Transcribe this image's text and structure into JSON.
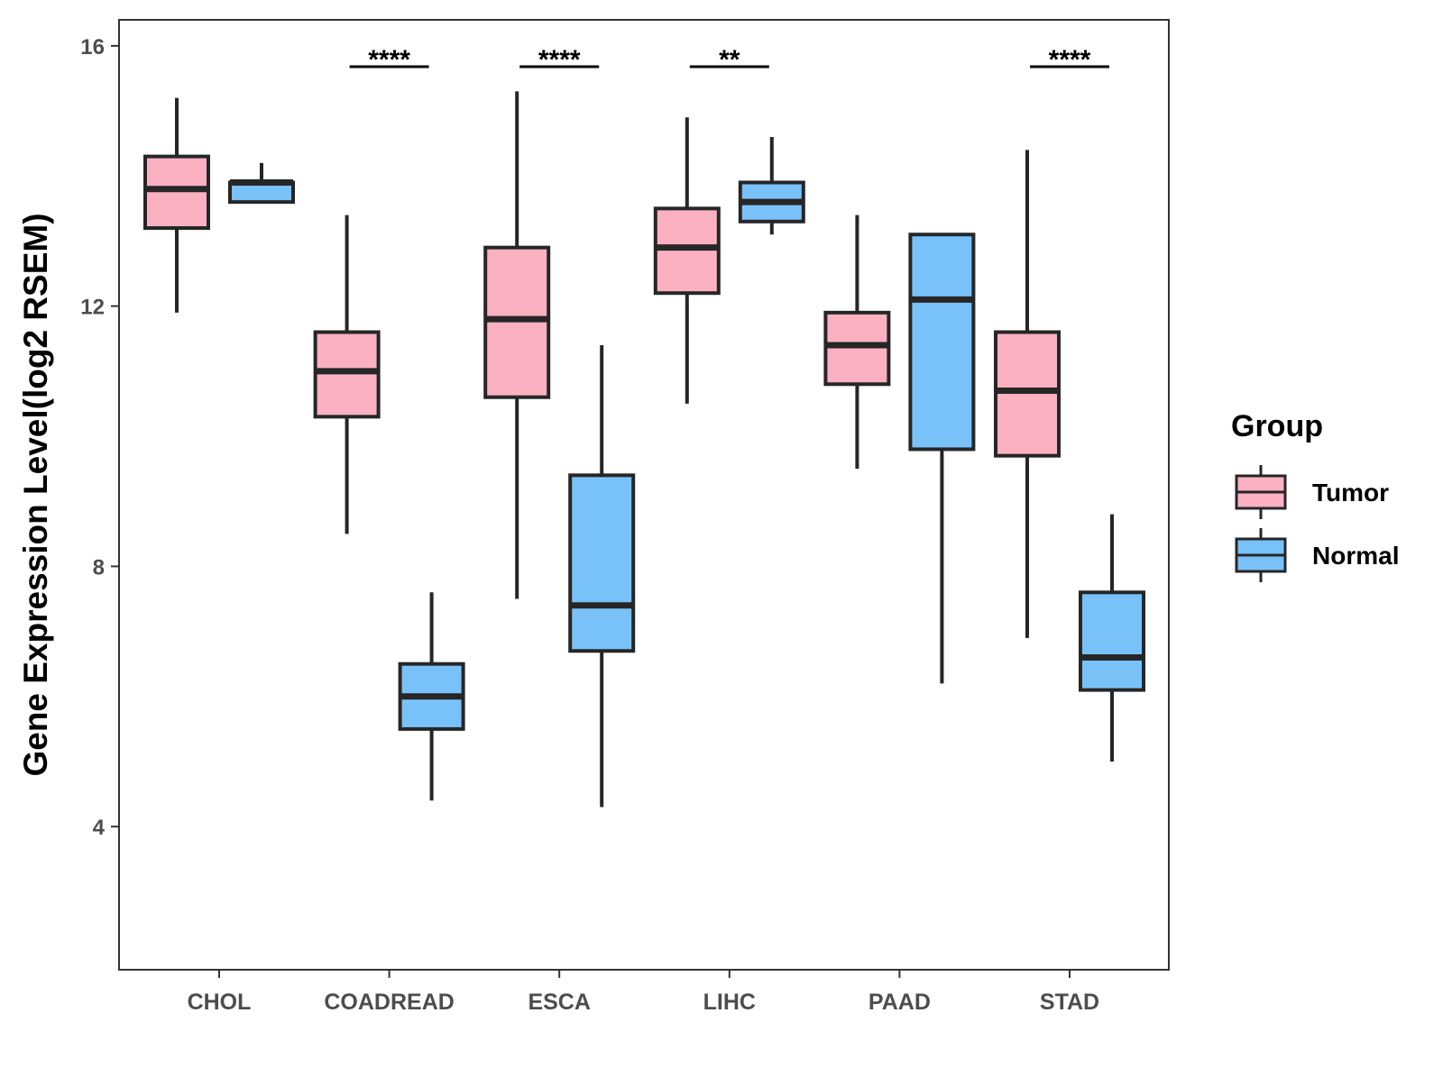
{
  "chart_data": {
    "type": "boxplot",
    "title": "",
    "xlabel": "",
    "ylabel": "Gene Expression Level(log2 RSEM)",
    "ylim": [
      1.8,
      16.4
    ],
    "yticks": [
      4,
      8,
      12,
      16
    ],
    "grid": false,
    "legend": {
      "title": "Group",
      "position": "right"
    },
    "groups": [
      "Tumor",
      "Normal"
    ],
    "colors": {
      "Tumor": "#fbb1c2",
      "Normal": "#79c2f9",
      "stroke": "#262626"
    },
    "categories": [
      "CHOL",
      "COADREAD",
      "ESCA",
      "LIHC",
      "PAAD",
      "STAD"
    ],
    "series": [
      {
        "name": "Tumor",
        "boxes": [
          {
            "category": "CHOL",
            "whisker_low": 11.9,
            "q1": 13.2,
            "median": 13.8,
            "q3": 14.3,
            "whisker_high": 15.2
          },
          {
            "category": "COADREAD",
            "whisker_low": 8.5,
            "q1": 10.3,
            "median": 11.0,
            "q3": 11.6,
            "whisker_high": 13.4
          },
          {
            "category": "ESCA",
            "whisker_low": 7.5,
            "q1": 10.6,
            "median": 11.8,
            "q3": 12.9,
            "whisker_high": 15.3
          },
          {
            "category": "LIHC",
            "whisker_low": 10.5,
            "q1": 12.2,
            "median": 12.9,
            "q3": 13.5,
            "whisker_high": 14.9
          },
          {
            "category": "PAAD",
            "whisker_low": 9.5,
            "q1": 10.8,
            "median": 11.4,
            "q3": 11.9,
            "whisker_high": 13.4
          },
          {
            "category": "STAD",
            "whisker_low": 6.9,
            "q1": 9.7,
            "median": 10.7,
            "q3": 11.6,
            "whisker_high": 14.4
          }
        ]
      },
      {
        "name": "Normal",
        "boxes": [
          {
            "category": "CHOL",
            "whisker_low": 13.6,
            "q1": 13.6,
            "median": 13.9,
            "q3": 13.9,
            "whisker_high": 14.2
          },
          {
            "category": "COADREAD",
            "whisker_low": 4.4,
            "q1": 5.5,
            "median": 6.0,
            "q3": 6.5,
            "whisker_high": 7.6
          },
          {
            "category": "ESCA",
            "whisker_low": 4.3,
            "q1": 6.7,
            "median": 7.4,
            "q3": 9.4,
            "whisker_high": 11.4
          },
          {
            "category": "LIHC",
            "whisker_low": 13.1,
            "q1": 13.3,
            "median": 13.6,
            "q3": 13.9,
            "whisker_high": 14.6
          },
          {
            "category": "PAAD",
            "whisker_low": 6.2,
            "q1": 9.8,
            "median": 12.1,
            "q3": 13.1,
            "whisker_high": 13.1
          },
          {
            "category": "STAD",
            "whisker_low": 5.0,
            "q1": 6.1,
            "median": 6.6,
            "q3": 7.6,
            "whisker_high": 8.8
          }
        ]
      }
    ],
    "significance": [
      {
        "category": "COADREAD",
        "label": "****"
      },
      {
        "category": "ESCA",
        "label": "****"
      },
      {
        "category": "LIHC",
        "label": "**"
      },
      {
        "category": "STAD",
        "label": "****"
      }
    ]
  }
}
